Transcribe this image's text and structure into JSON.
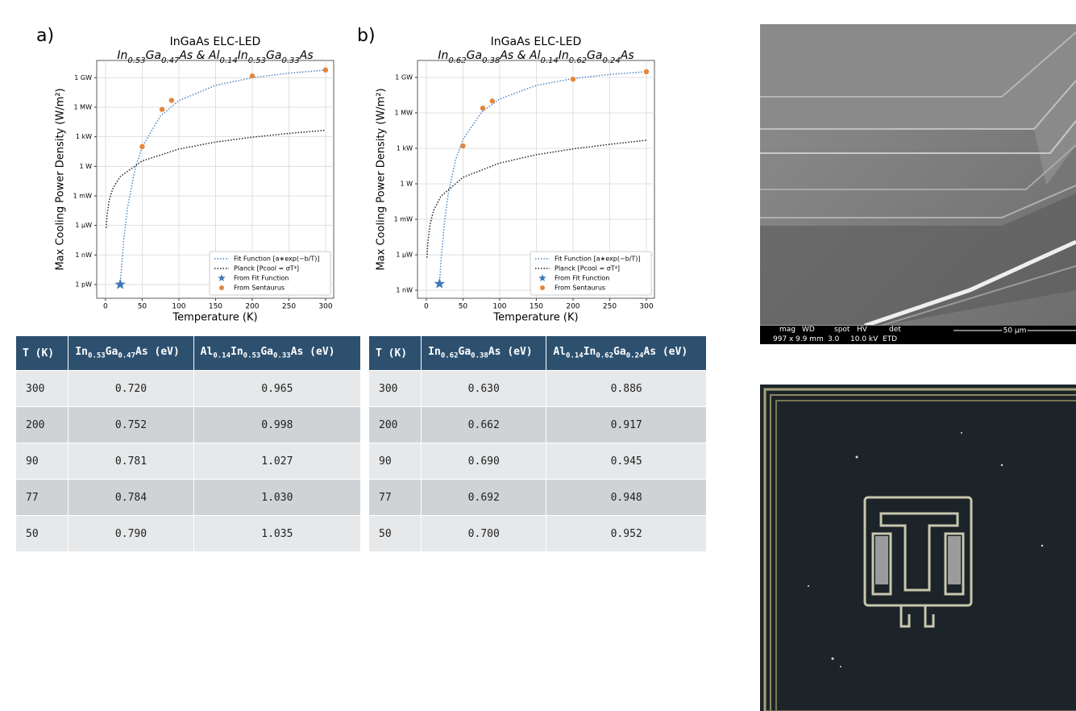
{
  "panels": [
    "a)",
    "b)"
  ],
  "chart_data": [
    {
      "type": "line",
      "title": "InGaAs ELC-LED",
      "subtitle": [
        "In",
        "0.53",
        "Ga",
        "0.47",
        "As & Al",
        "0.14",
        "In",
        "0.53",
        "Ga",
        "0.33",
        "As"
      ],
      "x_label": "Temperature (K)",
      "y_label": "Max Cooling Power Density (W/m²)",
      "xlim": [
        -12,
        311
      ],
      "xticks": [
        0,
        50,
        100,
        150,
        200,
        250,
        300
      ],
      "ylim": [
        4e-14,
        56000000000.0
      ],
      "ylog": true,
      "grid": true,
      "legend": "lower right",
      "yticks": [
        {
          "value": 1e-12,
          "label": "1 pW"
        },
        {
          "value": 1e-09,
          "label": "1 nW"
        },
        {
          "value": 1e-06,
          "label": "1 µW"
        },
        {
          "value": 0.001,
          "label": "1 mW"
        },
        {
          "value": 1,
          "label": "1 W"
        },
        {
          "value": 1000,
          "label": "1 kW"
        },
        {
          "value": 1000000,
          "label": "1 MW"
        },
        {
          "value": 1000000000,
          "label": "1 GW"
        }
      ],
      "series": [
        {
          "name": "Fit Function [a∗exp(−b/T)]",
          "kind": "line",
          "color": "#4a86c5",
          "x": [
            20,
            25,
            30,
            40,
            50,
            75,
            100,
            150,
            200,
            250,
            300
          ],
          "values": [
            1e-12,
            4.5e-08,
            5.9e-05,
            0.46,
            98,
            130000,
            4600000,
            170000000,
            1000000000,
            2900000000,
            5900000000
          ]
        },
        {
          "name": "Planck [Pcool = σT⁴]",
          "kind": "line",
          "color": "#222222",
          "x": [
            1,
            2,
            5,
            10,
            20,
            50,
            100,
            150,
            200,
            250,
            300
          ],
          "values": [
            5.7e-07,
            9e-06,
            0.00035,
            0.0057,
            0.09,
            3.5,
            57,
            290,
            900,
            2200,
            4600
          ]
        },
        {
          "name": "From Fit Function",
          "kind": "star",
          "color": "#3f78b5",
          "x": [
            20
          ],
          "values": [
            1e-12
          ]
        },
        {
          "name": "From Sentaurus",
          "kind": "circle",
          "color": "#e6853a",
          "x": [
            50,
            77,
            90,
            200,
            300
          ],
          "values": [
            100,
            600000,
            5000000,
            1500000000,
            6000000000
          ]
        }
      ]
    },
    {
      "type": "line",
      "title": "InGaAs ELC-LED",
      "subtitle": [
        "In",
        "0.62",
        "Ga",
        "0.38",
        "As & Al",
        "0.14",
        "In",
        "0.62",
        "Ga",
        "0.24",
        "As"
      ],
      "x_label": "Temperature (K)",
      "y_label": "Max Cooling Power Density (W/m²)",
      "xlim": [
        -12,
        311
      ],
      "xticks": [
        0,
        50,
        100,
        150,
        200,
        250,
        300
      ],
      "ylim": [
        2.1e-10,
        27000000000.0
      ],
      "ylog": true,
      "grid": true,
      "legend": "lower right",
      "yticks": [
        {
          "value": 1e-09,
          "label": "1 nW"
        },
        {
          "value": 1e-06,
          "label": "1 µW"
        },
        {
          "value": 0.001,
          "label": "1 mW"
        },
        {
          "value": 1,
          "label": "1 W"
        },
        {
          "value": 1000,
          "label": "1 kW"
        },
        {
          "value": 1000000,
          "label": "1 MW"
        },
        {
          "value": 1000000000,
          "label": "1 GW"
        }
      ],
      "series": [
        {
          "name": "Fit Function [a∗exp(−b/T)]",
          "kind": "line",
          "color": "#4a86c5",
          "x": [
            18,
            20,
            25,
            30,
            40,
            50,
            75,
            100,
            150,
            200,
            250,
            300
          ],
          "values": [
            3.5e-09,
            2.8e-07,
            0.00076,
            0.15,
            110,
            5600,
            1100000,
            15000000,
            210000000,
            790000000,
            1800000000,
            3000000000
          ]
        },
        {
          "name": "Planck [Pcool = σT⁴]",
          "kind": "line",
          "color": "#222222",
          "x": [
            1,
            2,
            5,
            10,
            20,
            50,
            100,
            150,
            200,
            250,
            300
          ],
          "values": [
            5.7e-07,
            9e-06,
            0.00035,
            0.0057,
            0.09,
            3.5,
            57,
            290,
            900,
            2200,
            4800
          ]
        },
        {
          "name": "From Fit Function",
          "kind": "star",
          "color": "#3f78b5",
          "x": [
            18
          ],
          "values": [
            3.5e-09
          ]
        },
        {
          "name": "From Sentaurus",
          "kind": "circle",
          "color": "#e6853a",
          "x": [
            50,
            77,
            90,
            200,
            300
          ],
          "values": [
            1600,
            2500000,
            10000000,
            700000000,
            3000000000
          ]
        }
      ]
    }
  ],
  "tables": [
    {
      "header": [
        "T (K)",
        [
          "In",
          "0.53",
          "Ga",
          "0.47",
          "As (eV)"
        ],
        [
          "Al",
          "0.14",
          "In",
          "0.53",
          "Ga",
          "0.33",
          "As (eV)"
        ]
      ],
      "rows": [
        [
          "300",
          "0.720",
          "0.965"
        ],
        [
          "200",
          "0.752",
          "0.998"
        ],
        [
          "90",
          "0.781",
          "1.027"
        ],
        [
          "77",
          "0.784",
          "1.030"
        ],
        [
          "50",
          "0.790",
          "1.035"
        ]
      ]
    },
    {
      "header": [
        "T (K)",
        [
          "In",
          "0.62",
          "Ga",
          "0.38",
          "As (eV)"
        ],
        [
          "Al",
          "0.14",
          "In",
          "0.62",
          "Ga",
          "0.24",
          "As (eV)"
        ]
      ],
      "rows": [
        [
          "300",
          "0.630",
          "0.886"
        ],
        [
          "200",
          "0.662",
          "0.917"
        ],
        [
          "90",
          "0.690",
          "0.945"
        ],
        [
          "77",
          "0.692",
          "0.948"
        ],
        [
          "50",
          "0.700",
          "0.952"
        ]
      ]
    }
  ],
  "sem_bar": {
    "labels": [
      "mag",
      "WD",
      "spot",
      "HV",
      "det"
    ],
    "values": [
      "997 x",
      "9.9 mm",
      "3.0",
      "10.0 kV",
      "ETD"
    ],
    "scale": "50 µm"
  }
}
